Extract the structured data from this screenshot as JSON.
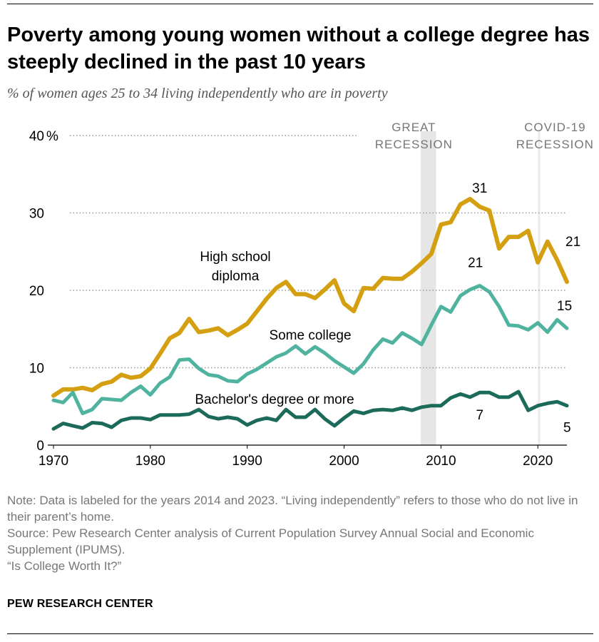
{
  "title": "Poverty among young women without a college degree has steeply declined in the past 10 years",
  "subtitle": "% of women ages 25 to 34 living independently who are in poverty",
  "notes": [
    "Note: Data is labeled for the years 2014 and 2023. “Living independently” refers to those who do not live in their parent’s home.",
    "Source: Pew Research Center analysis of Current Population Survey Annual Social and Economic Supplement (IPUMS).",
    "“Is College Worth It?”"
  ],
  "brand": "PEW RESEARCH CENTER",
  "chart_data": {
    "type": "line",
    "title": "Poverty among young women without a college degree has steeply declined in the past 10 years",
    "ylabel": "% of women ages 25 to 34 living independently who are in poverty",
    "xlim": [
      1970,
      2023
    ],
    "ylim": [
      0,
      40
    ],
    "x_ticks": [
      1970,
      1980,
      1990,
      2000,
      2010,
      2020
    ],
    "y_ticks": [
      0,
      10,
      20,
      30,
      40
    ],
    "y_top_unit": "%",
    "grid": true,
    "x": [
      1970,
      1971,
      1972,
      1973,
      1974,
      1975,
      1976,
      1977,
      1978,
      1979,
      1980,
      1981,
      1982,
      1983,
      1984,
      1985,
      1986,
      1987,
      1988,
      1989,
      1990,
      1991,
      1992,
      1993,
      1994,
      1995,
      1996,
      1997,
      1998,
      1999,
      2000,
      2001,
      2002,
      2003,
      2004,
      2005,
      2006,
      2007,
      2008,
      2009,
      2010,
      2011,
      2012,
      2013,
      2014,
      2015,
      2016,
      2017,
      2018,
      2019,
      2020,
      2021,
      2022,
      2023
    ],
    "series": [
      {
        "name": "High school diploma",
        "label_lines": [
          "High school",
          "diploma"
        ],
        "color": "#d4a012",
        "values": [
          6.4,
          7.2,
          7.2,
          7.4,
          7.1,
          7.9,
          8.2,
          9.1,
          8.7,
          8.9,
          9.9,
          11.8,
          13.8,
          14.5,
          16.3,
          14.6,
          14.8,
          15.1,
          14.2,
          14.9,
          15.7,
          17.3,
          18.9,
          20.3,
          21.1,
          19.5,
          19.5,
          19.0,
          20.1,
          21.3,
          18.3,
          17.3,
          20.3,
          20.2,
          21.6,
          21.5,
          21.5,
          22.4,
          23.5,
          24.7,
          28.5,
          28.8,
          31.1,
          31.8,
          30.8,
          30.3,
          25.4,
          26.9,
          26.9,
          27.7,
          23.6,
          26.3,
          23.9,
          21.1
        ],
        "labeled": [
          {
            "x": 2014,
            "label": "31"
          },
          {
            "x": 2023,
            "label": "21"
          }
        ]
      },
      {
        "name": "Some college",
        "label_lines": [
          "Some college"
        ],
        "color": "#4fb3a0",
        "values": [
          5.8,
          5.5,
          6.8,
          4.1,
          4.6,
          6.0,
          5.9,
          5.8,
          6.8,
          7.6,
          6.5,
          8.0,
          8.8,
          11.0,
          11.1,
          9.9,
          9.1,
          8.9,
          8.3,
          8.2,
          9.2,
          9.8,
          10.6,
          11.4,
          11.9,
          12.8,
          11.8,
          12.7,
          11.9,
          10.9,
          10.1,
          9.3,
          10.5,
          12.3,
          13.7,
          13.2,
          14.5,
          13.8,
          13.0,
          15.5,
          17.9,
          17.2,
          19.3,
          20.1,
          20.6,
          19.8,
          17.9,
          15.5,
          15.4,
          14.9,
          15.8,
          14.6,
          16.2,
          15.1
        ],
        "labeled": [
          {
            "x": 2014,
            "label": "21"
          },
          {
            "x": 2023,
            "label": "15"
          }
        ]
      },
      {
        "name": "Bachelor's degree or more",
        "label_lines": [
          "Bachelor's degree or more"
        ],
        "color": "#1c6a5a",
        "values": [
          2.1,
          2.8,
          2.5,
          2.2,
          2.9,
          2.8,
          2.3,
          3.2,
          3.5,
          3.5,
          3.3,
          3.9,
          3.9,
          3.9,
          4.0,
          4.6,
          3.7,
          3.4,
          3.6,
          3.4,
          2.6,
          3.2,
          3.5,
          3.2,
          4.6,
          3.6,
          3.6,
          4.6,
          3.4,
          2.5,
          3.5,
          4.4,
          4.1,
          4.5,
          4.6,
          4.5,
          4.8,
          4.5,
          4.9,
          5.1,
          5.1,
          6.1,
          6.6,
          6.2,
          6.8,
          6.8,
          6.2,
          6.2,
          6.9,
          4.5,
          5.1,
          5.4,
          5.6,
          5.1
        ],
        "labeled": [
          {
            "x": 2014,
            "label": "7"
          },
          {
            "x": 2023,
            "label": "5"
          }
        ]
      }
    ],
    "shaded_periods": [
      {
        "name": "Great Recession",
        "label_lines": [
          "GREAT",
          "RECESSION"
        ],
        "start": 2007.9,
        "end": 2009.5
      },
      {
        "name": "COVID-19 Recession",
        "label_lines": [
          "COVID-19",
          "RECESSION"
        ],
        "start": 2020.0,
        "end": 2020.25
      }
    ]
  }
}
